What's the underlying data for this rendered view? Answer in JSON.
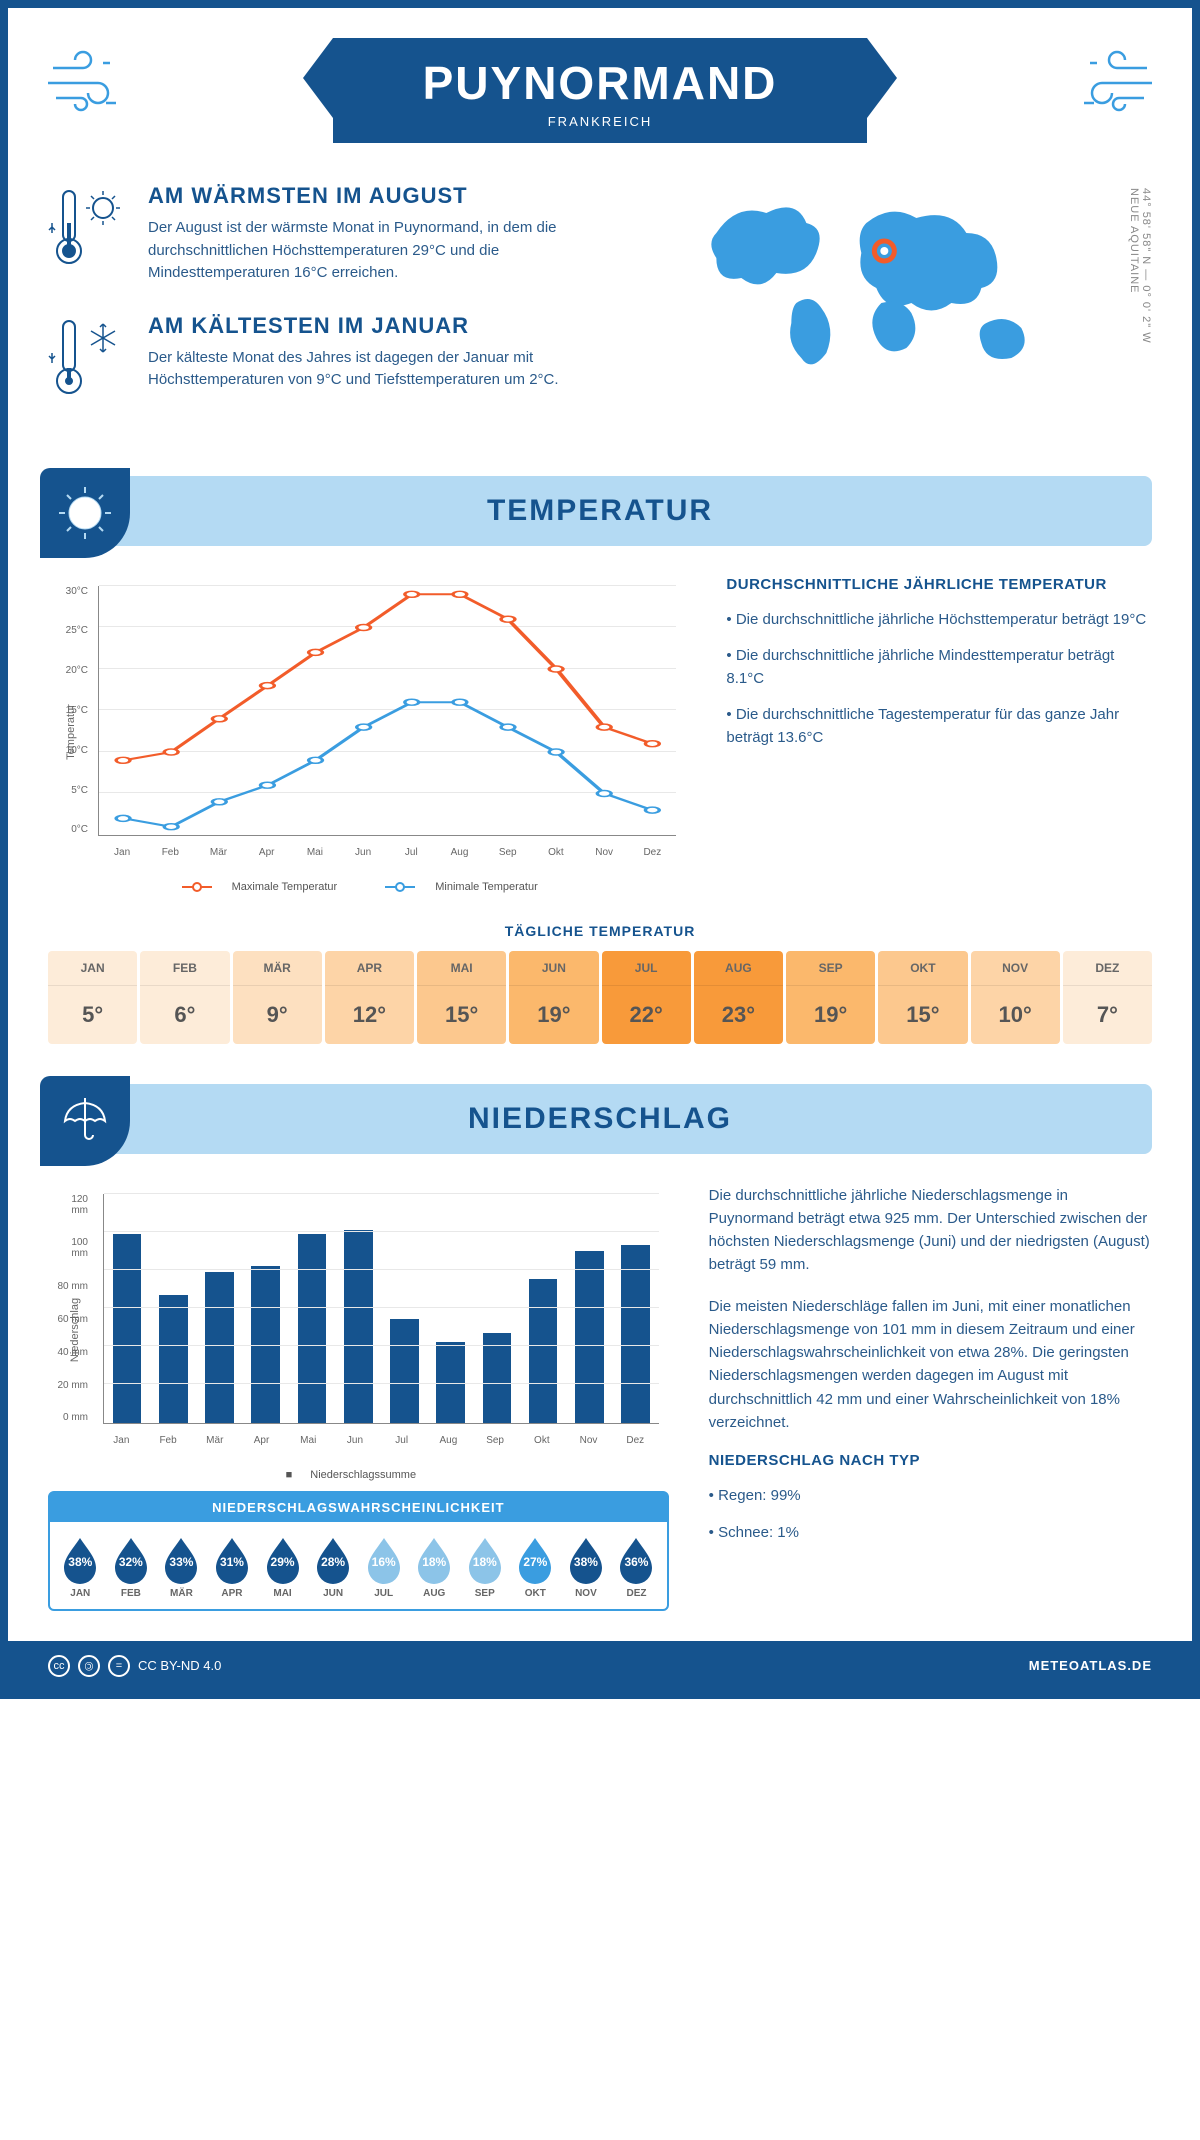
{
  "header": {
    "city": "PUYNORMAND",
    "country": "FRANKREICH"
  },
  "coords": {
    "line": "44° 58' 58\" N — 0° 0' 2\" W",
    "region": "NEUE AQUITAINE"
  },
  "facts": {
    "warm": {
      "title": "AM WÄRMSTEN IM AUGUST",
      "text": "Der August ist der wärmste Monat in Puynormand, in dem die durchschnittlichen Höchsttemperaturen 29°C und die Mindesttemperaturen 16°C erreichen."
    },
    "cold": {
      "title": "AM KÄLTESTEN IM JANUAR",
      "text": "Der kälteste Monat des Jahres ist dagegen der Januar mit Höchsttemperaturen von 9°C und Tiefsttemperaturen um 2°C."
    }
  },
  "sections": {
    "temp": "TEMPERATUR",
    "precip": "NIEDERSCHLAG"
  },
  "months": [
    "Jan",
    "Feb",
    "Mär",
    "Apr",
    "Mai",
    "Jun",
    "Jul",
    "Aug",
    "Sep",
    "Okt",
    "Nov",
    "Dez"
  ],
  "months_upper": [
    "JAN",
    "FEB",
    "MÄR",
    "APR",
    "MAI",
    "JUN",
    "JUL",
    "AUG",
    "SEP",
    "OKT",
    "NOV",
    "DEZ"
  ],
  "temp_chart": {
    "type": "line",
    "y_label": "Temperatur",
    "ylim": [
      0,
      30
    ],
    "ytick_step": 5,
    "ytick_labels": [
      "0°C",
      "5°C",
      "10°C",
      "15°C",
      "20°C",
      "25°C",
      "30°C"
    ],
    "max_series": {
      "label": "Maximale Temperatur",
      "color": "#f25c2a",
      "values": [
        9,
        10,
        14,
        18,
        22,
        25,
        29,
        29,
        26,
        20,
        13,
        11
      ]
    },
    "min_series": {
      "label": "Minimale Temperatur",
      "color": "#3a9de0",
      "values": [
        2,
        1,
        4,
        6,
        9,
        13,
        16,
        16,
        13,
        10,
        5,
        3
      ]
    },
    "grid_color": "#e8e8e8",
    "axis_color": "#888888"
  },
  "temp_info": {
    "title": "DURCHSCHNITTLICHE JÄHRLICHE TEMPERATUR",
    "bullets": [
      "• Die durchschnittliche jährliche Höchsttemperatur beträgt 19°C",
      "• Die durchschnittliche jährliche Mindesttemperatur beträgt 8.1°C",
      "• Die durchschnittliche Tagestemperatur für das ganze Jahr beträgt 13.6°C"
    ]
  },
  "daily_temp": {
    "title": "TÄGLICHE TEMPERATUR",
    "values": [
      "5°",
      "6°",
      "9°",
      "12°",
      "15°",
      "19°",
      "22°",
      "23°",
      "19°",
      "15°",
      "10°",
      "7°"
    ],
    "cell_colors": [
      "#fdecd9",
      "#fdecd9",
      "#fde0c0",
      "#fdd4a7",
      "#fcc88e",
      "#fbb86c",
      "#f89a3a",
      "#f89a3a",
      "#fbb86c",
      "#fcc88e",
      "#fdd4a7",
      "#fdecd9"
    ]
  },
  "precip_chart": {
    "type": "bar",
    "y_label": "Niederschlag",
    "ylim": [
      0,
      120
    ],
    "ytick_step": 20,
    "ytick_labels": [
      "0 mm",
      "20 mm",
      "40 mm",
      "60 mm",
      "80 mm",
      "100 mm",
      "120 mm"
    ],
    "bar_color": "#15538e",
    "values": [
      99,
      67,
      79,
      82,
      99,
      101,
      54,
      42,
      47,
      75,
      90,
      93
    ],
    "legend": "Niederschlagssumme"
  },
  "precip_info": {
    "p1": "Die durchschnittliche jährliche Niederschlagsmenge in Puynormand beträgt etwa 925 mm. Der Unterschied zwischen der höchsten Niederschlagsmenge (Juni) und der niedrigsten (August) beträgt 59 mm.",
    "p2": "Die meisten Niederschläge fallen im Juni, mit einer monatlichen Niederschlagsmenge von 101 mm in diesem Zeitraum und einer Niederschlagswahrscheinlichkeit von etwa 28%. Die geringsten Niederschlagsmengen werden dagegen im August mit durchschnittlich 42 mm und einer Wahrscheinlichkeit von 18% verzeichnet.",
    "type_title": "NIEDERSCHLAG NACH TYP",
    "type_bullets": [
      "• Regen: 99%",
      "• Schnee: 1%"
    ]
  },
  "prob": {
    "title": "NIEDERSCHLAGSWAHRSCHEINLICHKEIT",
    "values": [
      "38%",
      "32%",
      "33%",
      "31%",
      "29%",
      "28%",
      "16%",
      "18%",
      "18%",
      "27%",
      "38%",
      "36%"
    ],
    "colors": [
      "#15538e",
      "#15538e",
      "#15538e",
      "#15538e",
      "#15538e",
      "#15538e",
      "#8cc4e8",
      "#8cc4e8",
      "#8cc4e8",
      "#3a9de0",
      "#15538e",
      "#15538e"
    ]
  },
  "footer": {
    "license": "CC BY-ND 4.0",
    "site": "METEOATLAS.DE"
  },
  "colors": {
    "primary": "#15538e",
    "accent": "#3a9de0",
    "light": "#b4daf3"
  }
}
